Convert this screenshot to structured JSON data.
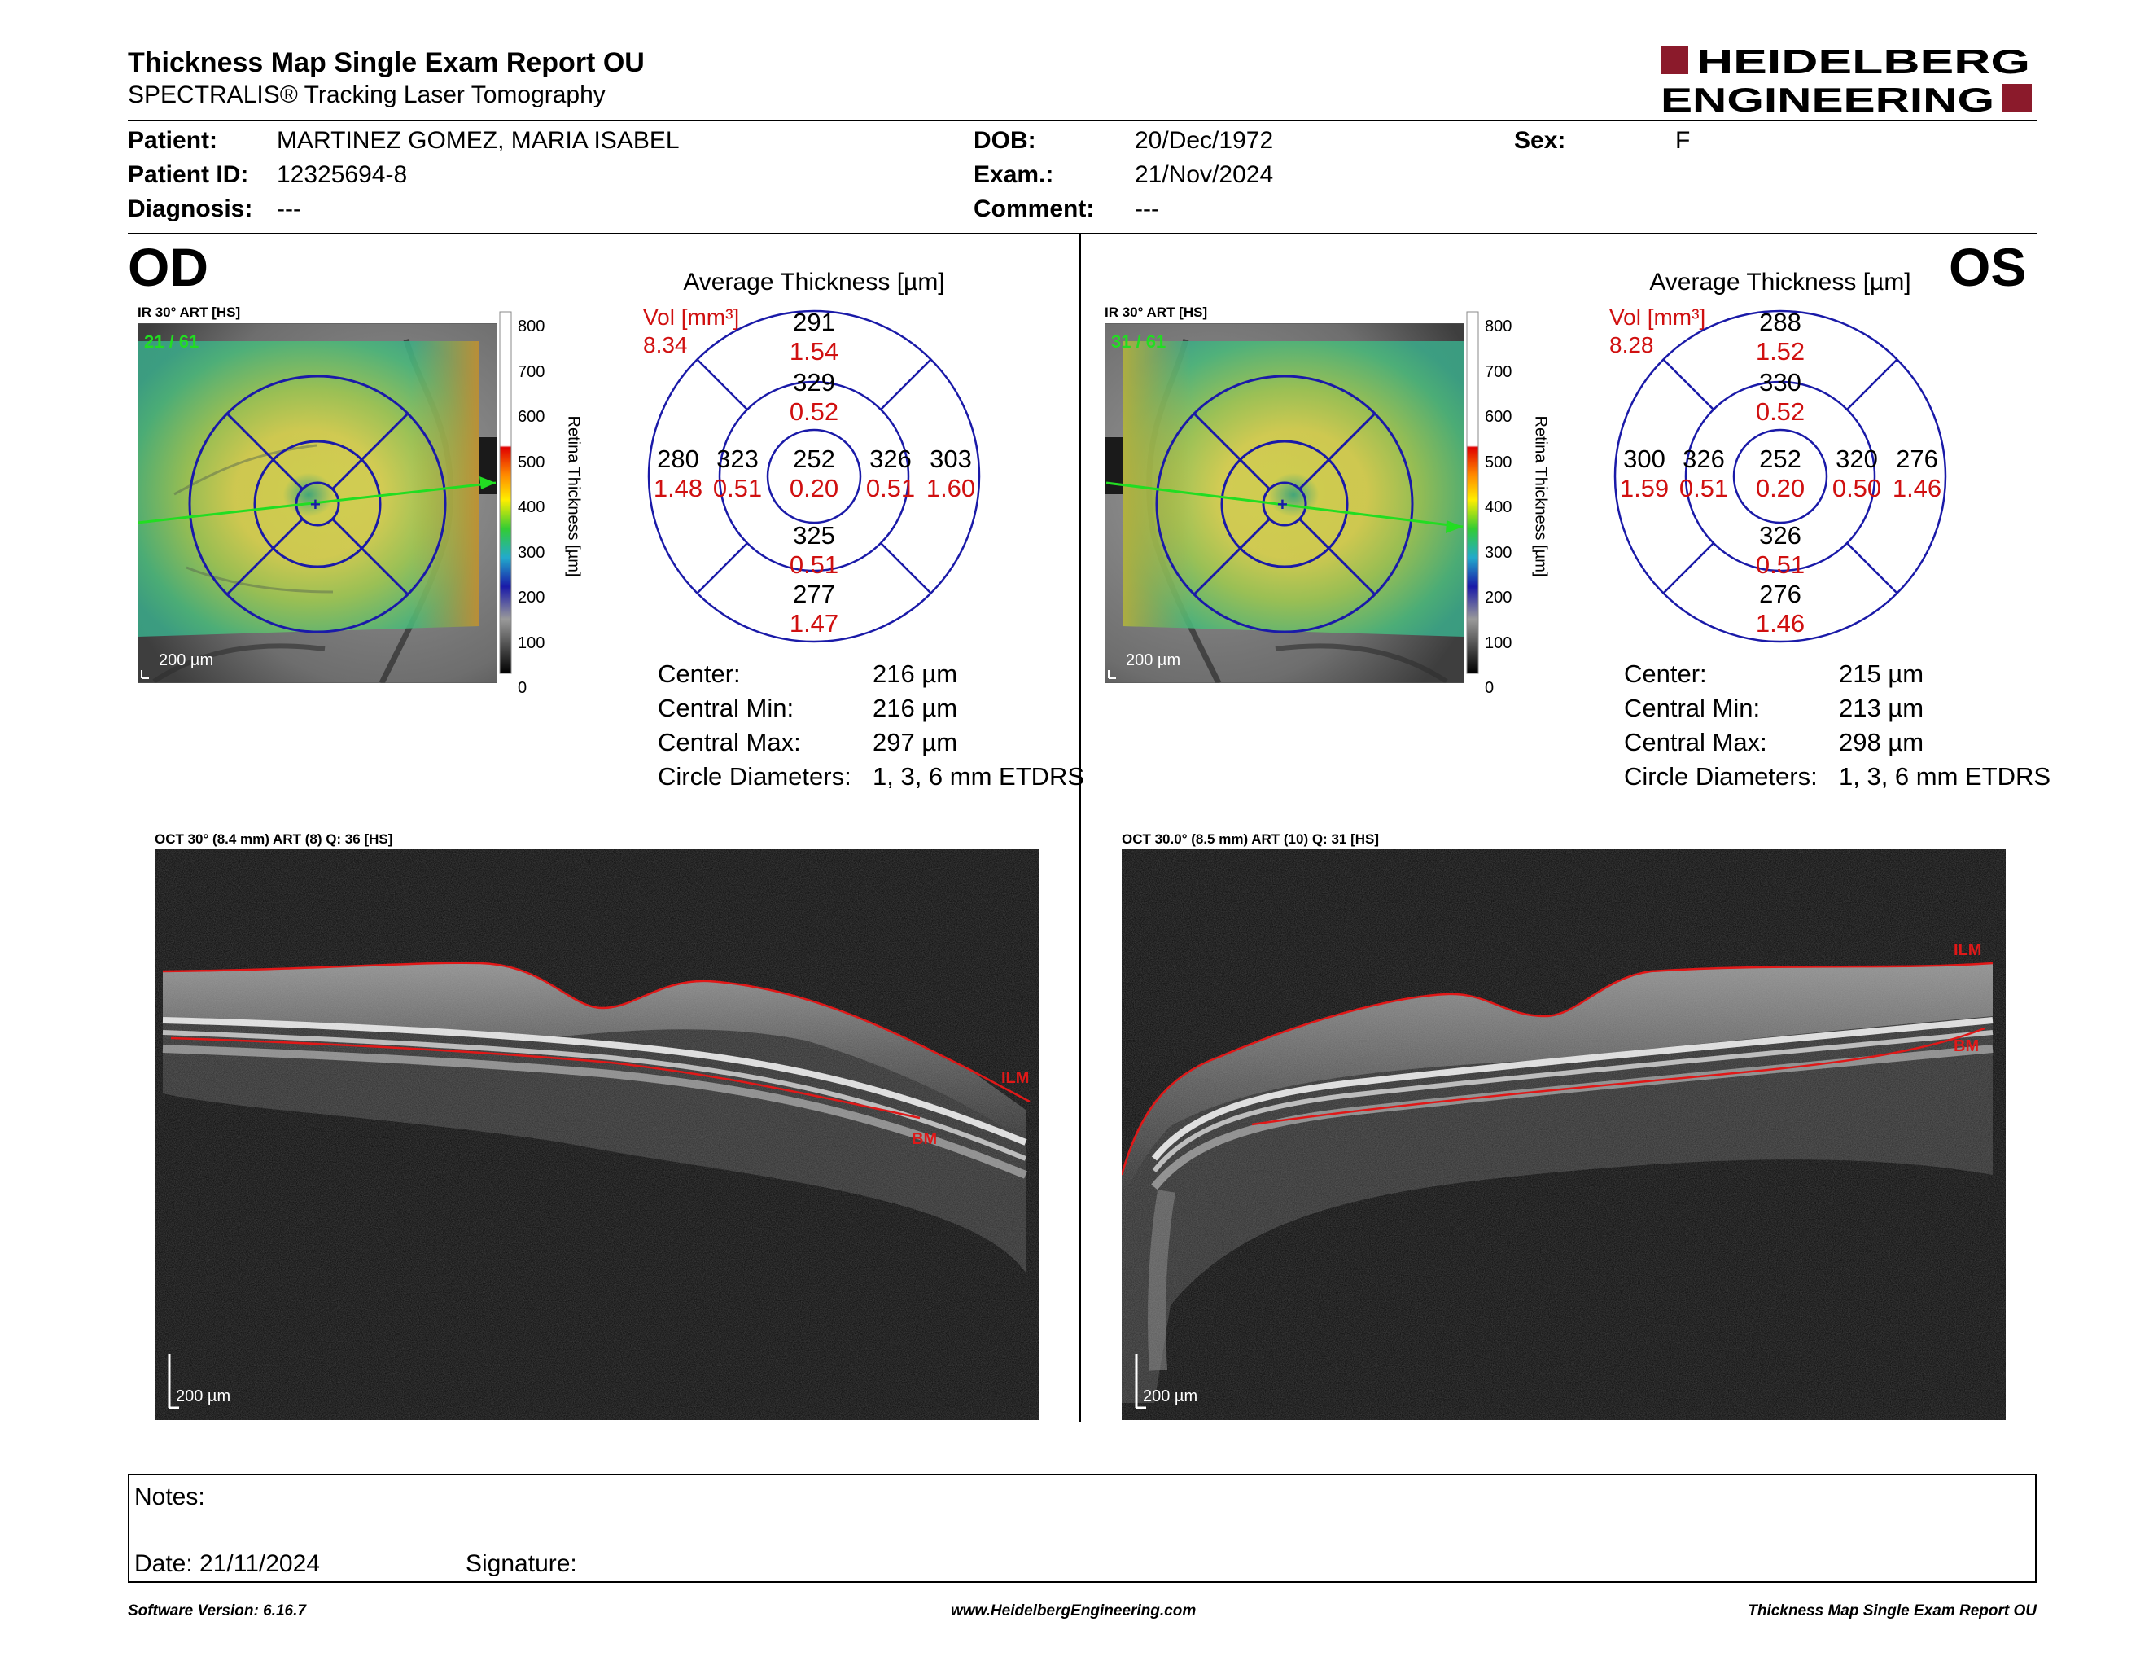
{
  "header": {
    "title": "Thickness Map Single Exam Report OU",
    "subtitle": "SPECTRALIS® Tracking Laser Tomography",
    "brand_line1": "HEIDELBERG",
    "brand_line2": "ENGINEERING",
    "brand_color": "#8b1a2b"
  },
  "patient": {
    "patient_label": "Patient:",
    "patient_value": "MARTINEZ GOMEZ, MARIA ISABEL",
    "id_label": "Patient ID:",
    "id_value": "12325694-8",
    "diagnosis_label": "Diagnosis:",
    "diagnosis_value": "---",
    "dob_label": "DOB:",
    "dob_value": "20/Dec/1972",
    "exam_label": "Exam.:",
    "exam_value": "21/Nov/2024",
    "comment_label": "Comment:",
    "comment_value": "---",
    "sex_label": "Sex:",
    "sex_value": "F"
  },
  "od": {
    "eye_label": "OD",
    "ir_label": "IR 30° ART [HS]",
    "ir_counter": "21 / 61",
    "ir_scale": "200 µm",
    "colorbar_label": "Retina Thickness [µm]",
    "colorbar_ticks": [
      "800",
      "700",
      "600",
      "500",
      "400",
      "300",
      "200",
      "100",
      "0"
    ],
    "avg_title": "Average Thickness [µm]",
    "vol_label": "Vol [mm³]",
    "vol_value": "8.34",
    "sectors": {
      "outer_superior": "291",
      "outer_superior_vol": "1.54",
      "inner_superior": "329",
      "inner_superior_vol": "0.52",
      "outer_left": "280",
      "outer_left_vol": "1.48",
      "inner_left": "323",
      "inner_left_vol": "0.51",
      "center": "252",
      "center_vol": "0.20",
      "inner_right": "326",
      "inner_right_vol": "0.51",
      "outer_right": "303",
      "outer_right_vol": "1.60",
      "inner_inferior": "325",
      "inner_inferior_vol": "0.51",
      "outer_inferior": "277",
      "outer_inferior_vol": "1.47"
    },
    "stats": {
      "center_label": "Center:",
      "center_value": "216 µm",
      "min_label": "Central Min:",
      "min_value": "216 µm",
      "max_label": "Central Max:",
      "max_value": "297 µm",
      "diam_label": "Circle Diameters:",
      "diam_value": "1, 3, 6 mm ETDRS"
    },
    "oct_label": "OCT 30° (8.4 mm) ART (8) Q: 36 [HS]",
    "oct_scale": "200 µm",
    "ilm_label": "ILM",
    "bm_label": "BM"
  },
  "os": {
    "eye_label": "OS",
    "ir_label": "IR 30° ART [HS]",
    "ir_counter": "31 / 61",
    "ir_scale": "200 µm",
    "colorbar_label": "Retina Thickness [µm]",
    "colorbar_ticks": [
      "800",
      "700",
      "600",
      "500",
      "400",
      "300",
      "200",
      "100",
      "0"
    ],
    "avg_title": "Average Thickness [µm]",
    "vol_label": "Vol [mm³]",
    "vol_value": "8.28",
    "sectors": {
      "outer_superior": "288",
      "outer_superior_vol": "1.52",
      "inner_superior": "330",
      "inner_superior_vol": "0.52",
      "outer_left": "300",
      "outer_left_vol": "1.59",
      "inner_left": "326",
      "inner_left_vol": "0.51",
      "center": "252",
      "center_vol": "0.20",
      "inner_right": "320",
      "inner_right_vol": "0.50",
      "outer_right": "276",
      "outer_right_vol": "1.46",
      "inner_inferior": "326",
      "inner_inferior_vol": "0.51",
      "outer_inferior": "276",
      "outer_inferior_vol": "1.46"
    },
    "stats": {
      "center_label": "Center:",
      "center_value": "215 µm",
      "min_label": "Central Min:",
      "min_value": "213 µm",
      "max_label": "Central Max:",
      "max_value": "298 µm",
      "diam_label": "Circle Diameters:",
      "diam_value": "1, 3, 6 mm ETDRS"
    },
    "oct_label": "OCT 30.0° (8.5 mm) ART (10) Q: 31 [HS]",
    "oct_scale": "200 µm",
    "ilm_label": "ILM",
    "bm_label": "BM"
  },
  "notes": {
    "notes_label": "Notes:",
    "date_label": "Date: 21/11/2024",
    "signature_label": "Signature:"
  },
  "footer": {
    "software": "Software Version: 6.16.7",
    "website": "www.HeidelbergEngineering.com",
    "report": "Thickness Map Single Exam Report OU"
  },
  "colors": {
    "etdrs_grid": "#1a1aa8",
    "volume_text": "#d01010",
    "ilm_line": "#e01818",
    "scan_line": "#22dd22"
  }
}
